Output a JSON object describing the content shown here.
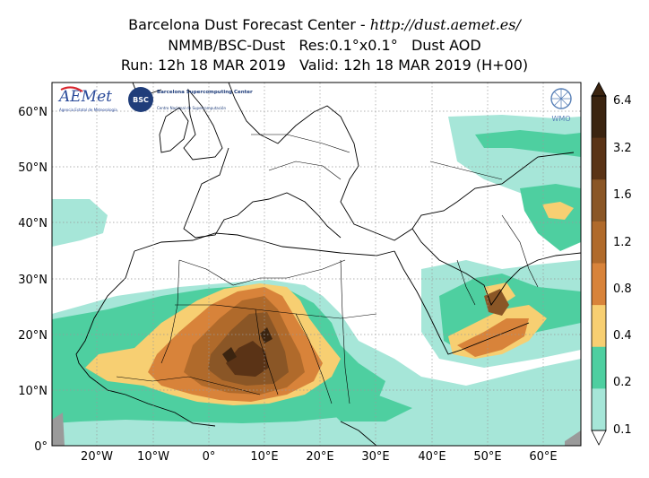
{
  "title": {
    "line1_prefix": "Barcelona Dust Forecast Center - ",
    "line1_url": "http://dust.aemet.es/",
    "line2": "NMMB/BSC-Dust   Res:0.1°x0.1°   Dust AOD",
    "line3": "Run: 12h 18 MAR 2019   Valid: 12h 18 MAR 2019 (H+00)"
  },
  "axes": {
    "lat_labels": [
      "60°N",
      "50°N",
      "40°N",
      "30°N",
      "20°N",
      "10°N",
      "0°"
    ],
    "lon_labels": [
      "20°W",
      "10°W",
      "0°",
      "10°E",
      "20°E",
      "30°E",
      "40°E",
      "50°E",
      "60°E"
    ]
  },
  "colorbar": {
    "labels": [
      "6.4",
      "3.2",
      "1.6",
      "1.2",
      "0.8",
      "0.4",
      "0.2",
      "0.1"
    ],
    "colors": [
      "#3b2410",
      "#5a3316",
      "#8a5626",
      "#b06a2b",
      "#d8833a",
      "#f7cf72",
      "#4ecfa0",
      "#a6e6d8"
    ]
  },
  "logos": {
    "aemet": "AEMet",
    "aemet_sub": "Agencia Estatal de Meteorología",
    "bsc": "BSC",
    "bsc_text": "Barcelona Supercomputing Center",
    "bsc_sub": "Centro Nacional de Supercomputación",
    "wmo": "WMO"
  }
}
